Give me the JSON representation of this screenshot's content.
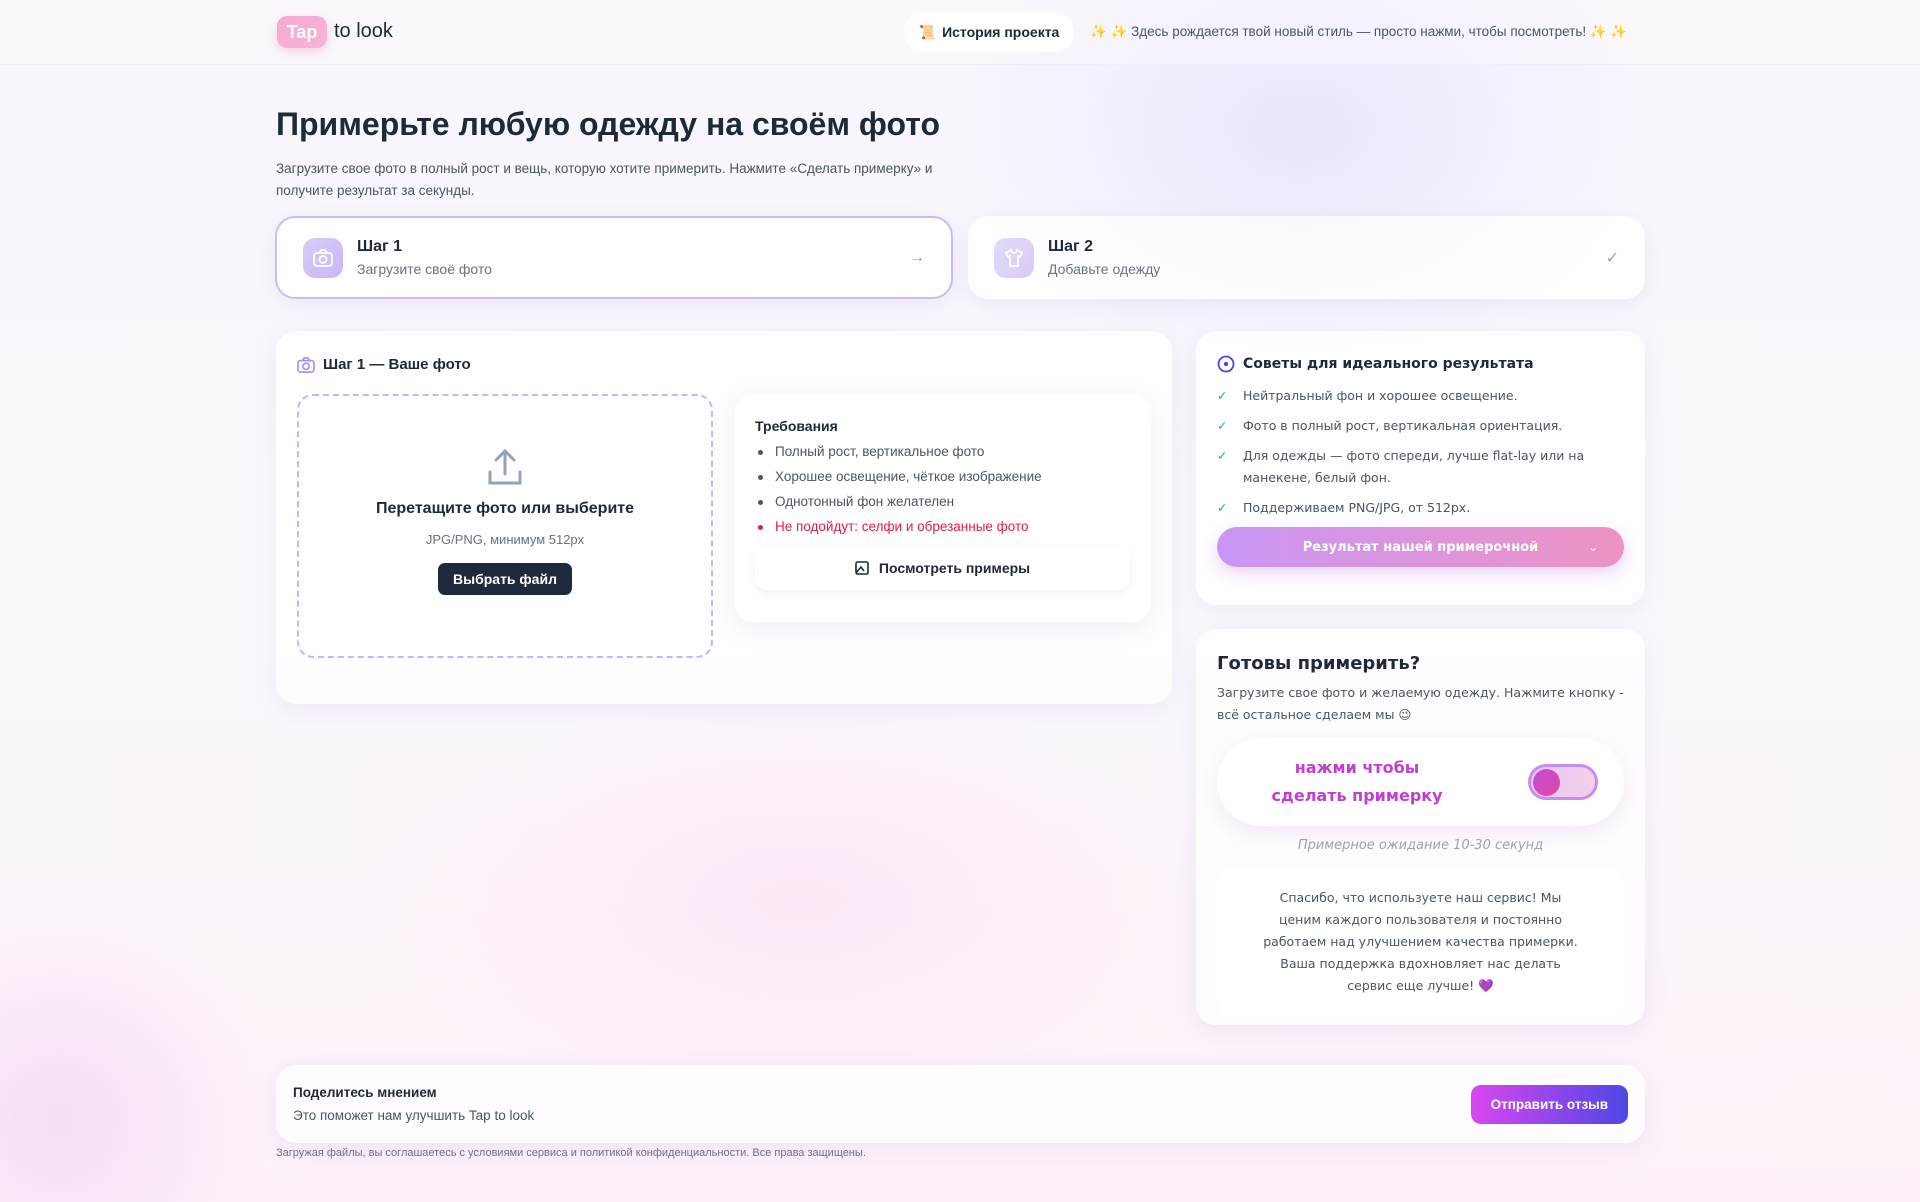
{
  "header": {
    "logo_badge": "Tap",
    "logo_text": "to look",
    "history_label": "История проекта",
    "marquee": "✨ ✨ Здесь рождается твой новый стиль — просто нажми, чтобы посмотреть! ✨ ✨"
  },
  "hero": {
    "title": "Примерьте любую одежду на своём фото",
    "subtitle": "Загрузите свое фото в полный рост и вещь, которую хотите примерить. Нажмите «Сделать примерку» и получите результат за секунды."
  },
  "steps": [
    {
      "title": "Шаг 1",
      "sub": "Загрузите своё фото",
      "status": "→"
    },
    {
      "title": "Шаг 2",
      "sub": "Добавьте одежду",
      "status": "✓"
    }
  ],
  "upload": {
    "title": "Шаг 1 — Ваше фото",
    "drop_title": "Перетащите фото или выберите",
    "drop_sub": "JPG/PNG, минимум 512px",
    "choose_label": "Выбрать файл"
  },
  "requirements": {
    "title": "Требования",
    "items": [
      "Полный рост, вертикальное фото",
      "Хорошее освещение, чёткое изображение",
      "Однотонный фон желателен"
    ],
    "warning": "Не подойдут: селфи и обрезанные фото",
    "examples_label": "Посмотреть примеры"
  },
  "tips": {
    "title": "Советы для идеального результата",
    "items": [
      "Нейтральный фон и хорошее освещение.",
      "Фото в полный рост, вертикальная ориентация.",
      "Для одежды — фото спереди, лучше flat-lay или на манекене, белый фон.",
      "Поддерживаем PNG/JPG, от 512px."
    ],
    "result_label": "Результат нашей примерочной"
  },
  "ready": {
    "title": "Готовы примерить?",
    "text": "Загрузите свое фото и желаемую одежду. Нажмите кнопку - всё остальное сделаем мы 😉",
    "toggle_label": "нажми чтобы сделать примерку",
    "toggle_on": false,
    "wait": "Примерное ожидание 10-30 секунд",
    "thanks": "Спасибо, что используете наш сервис! Мы ценим каждого пользователя и постоянно работаем над улучшением качества примерки. Ваша поддержка вдохновляет нас делать сервис еще лучше! 💜"
  },
  "feedback": {
    "title": "Поделитесь мнением",
    "sub": "Это поможет нам улучшить Tap to look",
    "button": "Отправить отзыв"
  },
  "footer": {
    "text": "Загружая файлы, вы соглашаетесь с условиями сервиса и политикой конфиденциальности. Все права защищены."
  },
  "colors": {
    "accent": "#8b5cf6",
    "danger": "#e11d48",
    "success": "#10b981",
    "dark": "#1e293b"
  }
}
